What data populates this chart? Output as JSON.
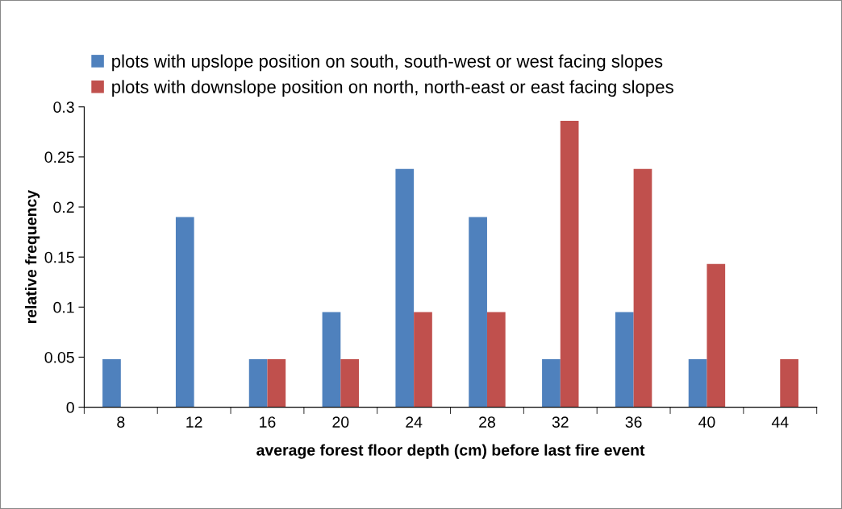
{
  "chart_data": {
    "type": "bar",
    "xlabel": "average forest floor depth (cm) before last fire event",
    "ylabel": "relative frequency",
    "categories": [
      "8",
      "12",
      "16",
      "20",
      "24",
      "28",
      "32",
      "36",
      "40",
      "44"
    ],
    "series": [
      {
        "name": "plots with upslope position on south, south-west or west facing slopes",
        "color": "#4f81bd",
        "values": [
          0.048,
          0.19,
          0.048,
          0.095,
          0.238,
          0.19,
          0.048,
          0.095,
          0.048,
          0
        ]
      },
      {
        "name": "plots with downslope position on north, north-east or east facing slopes",
        "color": "#c0504d",
        "values": [
          0,
          0,
          0.048,
          0.048,
          0.095,
          0.095,
          0.286,
          0.238,
          0.143,
          0.048
        ]
      }
    ],
    "ylim": [
      0,
      0.3
    ],
    "yticks": [
      0,
      0.05,
      0.1,
      0.15,
      0.2,
      0.25,
      0.3
    ],
    "grid": false,
    "legend": "top"
  }
}
